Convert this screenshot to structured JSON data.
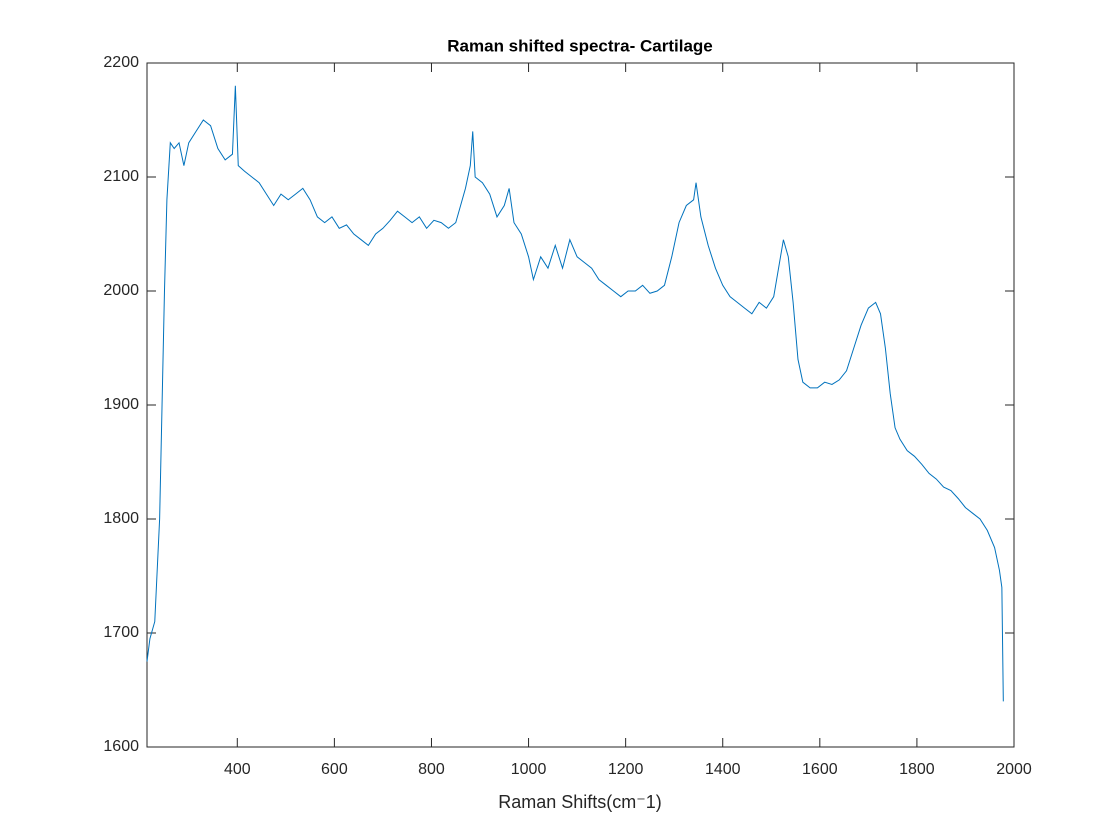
{
  "chart_data": {
    "type": "line",
    "title": "Raman shifted spectra- Cartilage",
    "x_label": "Raman Shifts(cm⁻1)",
    "x": [
      214,
      220,
      230,
      240,
      245,
      250,
      255,
      262,
      270,
      280,
      290,
      300,
      315,
      330,
      345,
      360,
      375,
      390,
      396,
      402,
      415,
      430,
      445,
      460,
      475,
      490,
      505,
      520,
      535,
      550,
      565,
      580,
      595,
      610,
      625,
      640,
      655,
      670,
      685,
      700,
      715,
      730,
      745,
      760,
      775,
      790,
      805,
      820,
      835,
      850,
      860,
      870,
      880,
      885,
      890,
      905,
      920,
      935,
      950,
      960,
      970,
      985,
      1000,
      1010,
      1025,
      1040,
      1055,
      1070,
      1085,
      1100,
      1115,
      1130,
      1145,
      1160,
      1175,
      1190,
      1205,
      1220,
      1235,
      1250,
      1265,
      1280,
      1295,
      1310,
      1325,
      1340,
      1345,
      1355,
      1370,
      1385,
      1400,
      1415,
      1430,
      1445,
      1460,
      1475,
      1490,
      1505,
      1515,
      1525,
      1535,
      1545,
      1555,
      1565,
      1580,
      1595,
      1610,
      1625,
      1640,
      1655,
      1670,
      1685,
      1700,
      1715,
      1725,
      1735,
      1745,
      1755,
      1765,
      1780,
      1795,
      1810,
      1825,
      1840,
      1855,
      1870,
      1885,
      1900,
      1915,
      1930,
      1945,
      1960,
      1970,
      1975,
      1978
    ],
    "values": [
      1675,
      1695,
      1710,
      1800,
      1900,
      2000,
      2080,
      2130,
      2125,
      2130,
      2110,
      2130,
      2140,
      2150,
      2145,
      2125,
      2115,
      2120,
      2180,
      2110,
      2105,
      2100,
      2095,
      2085,
      2075,
      2085,
      2080,
      2085,
      2090,
      2080,
      2065,
      2060,
      2065,
      2055,
      2058,
      2050,
      2045,
      2040,
      2050,
      2055,
      2062,
      2070,
      2065,
      2060,
      2065,
      2055,
      2062,
      2060,
      2055,
      2060,
      2075,
      2090,
      2110,
      2140,
      2100,
      2095,
      2085,
      2065,
      2075,
      2090,
      2060,
      2050,
      2030,
      2010,
      2030,
      2020,
      2040,
      2020,
      2045,
      2030,
      2025,
      2020,
      2010,
      2005,
      2000,
      1995,
      2000,
      2000,
      2005,
      1998,
      2000,
      2005,
      2030,
      2060,
      2075,
      2080,
      2095,
      2065,
      2040,
      2020,
      2005,
      1995,
      1990,
      1985,
      1980,
      1990,
      1985,
      1995,
      2020,
      2045,
      2030,
      1990,
      1940,
      1920,
      1915,
      1915,
      1920,
      1918,
      1922,
      1930,
      1950,
      1970,
      1985,
      1990,
      1980,
      1950,
      1910,
      1880,
      1870,
      1860,
      1855,
      1848,
      1840,
      1835,
      1828,
      1825,
      1818,
      1810,
      1805,
      1800,
      1790,
      1775,
      1755,
      1740,
      1640
    ],
    "color": "#0072bd",
    "xlim": [
      214,
      2000
    ],
    "xticks": [
      400,
      600,
      800,
      1000,
      1200,
      1400,
      1600,
      1800,
      2000
    ],
    "ylim": [
      1600,
      2200
    ],
    "yticks": [
      1600,
      1700,
      1800,
      1900,
      2000,
      2100,
      2200
    ]
  }
}
